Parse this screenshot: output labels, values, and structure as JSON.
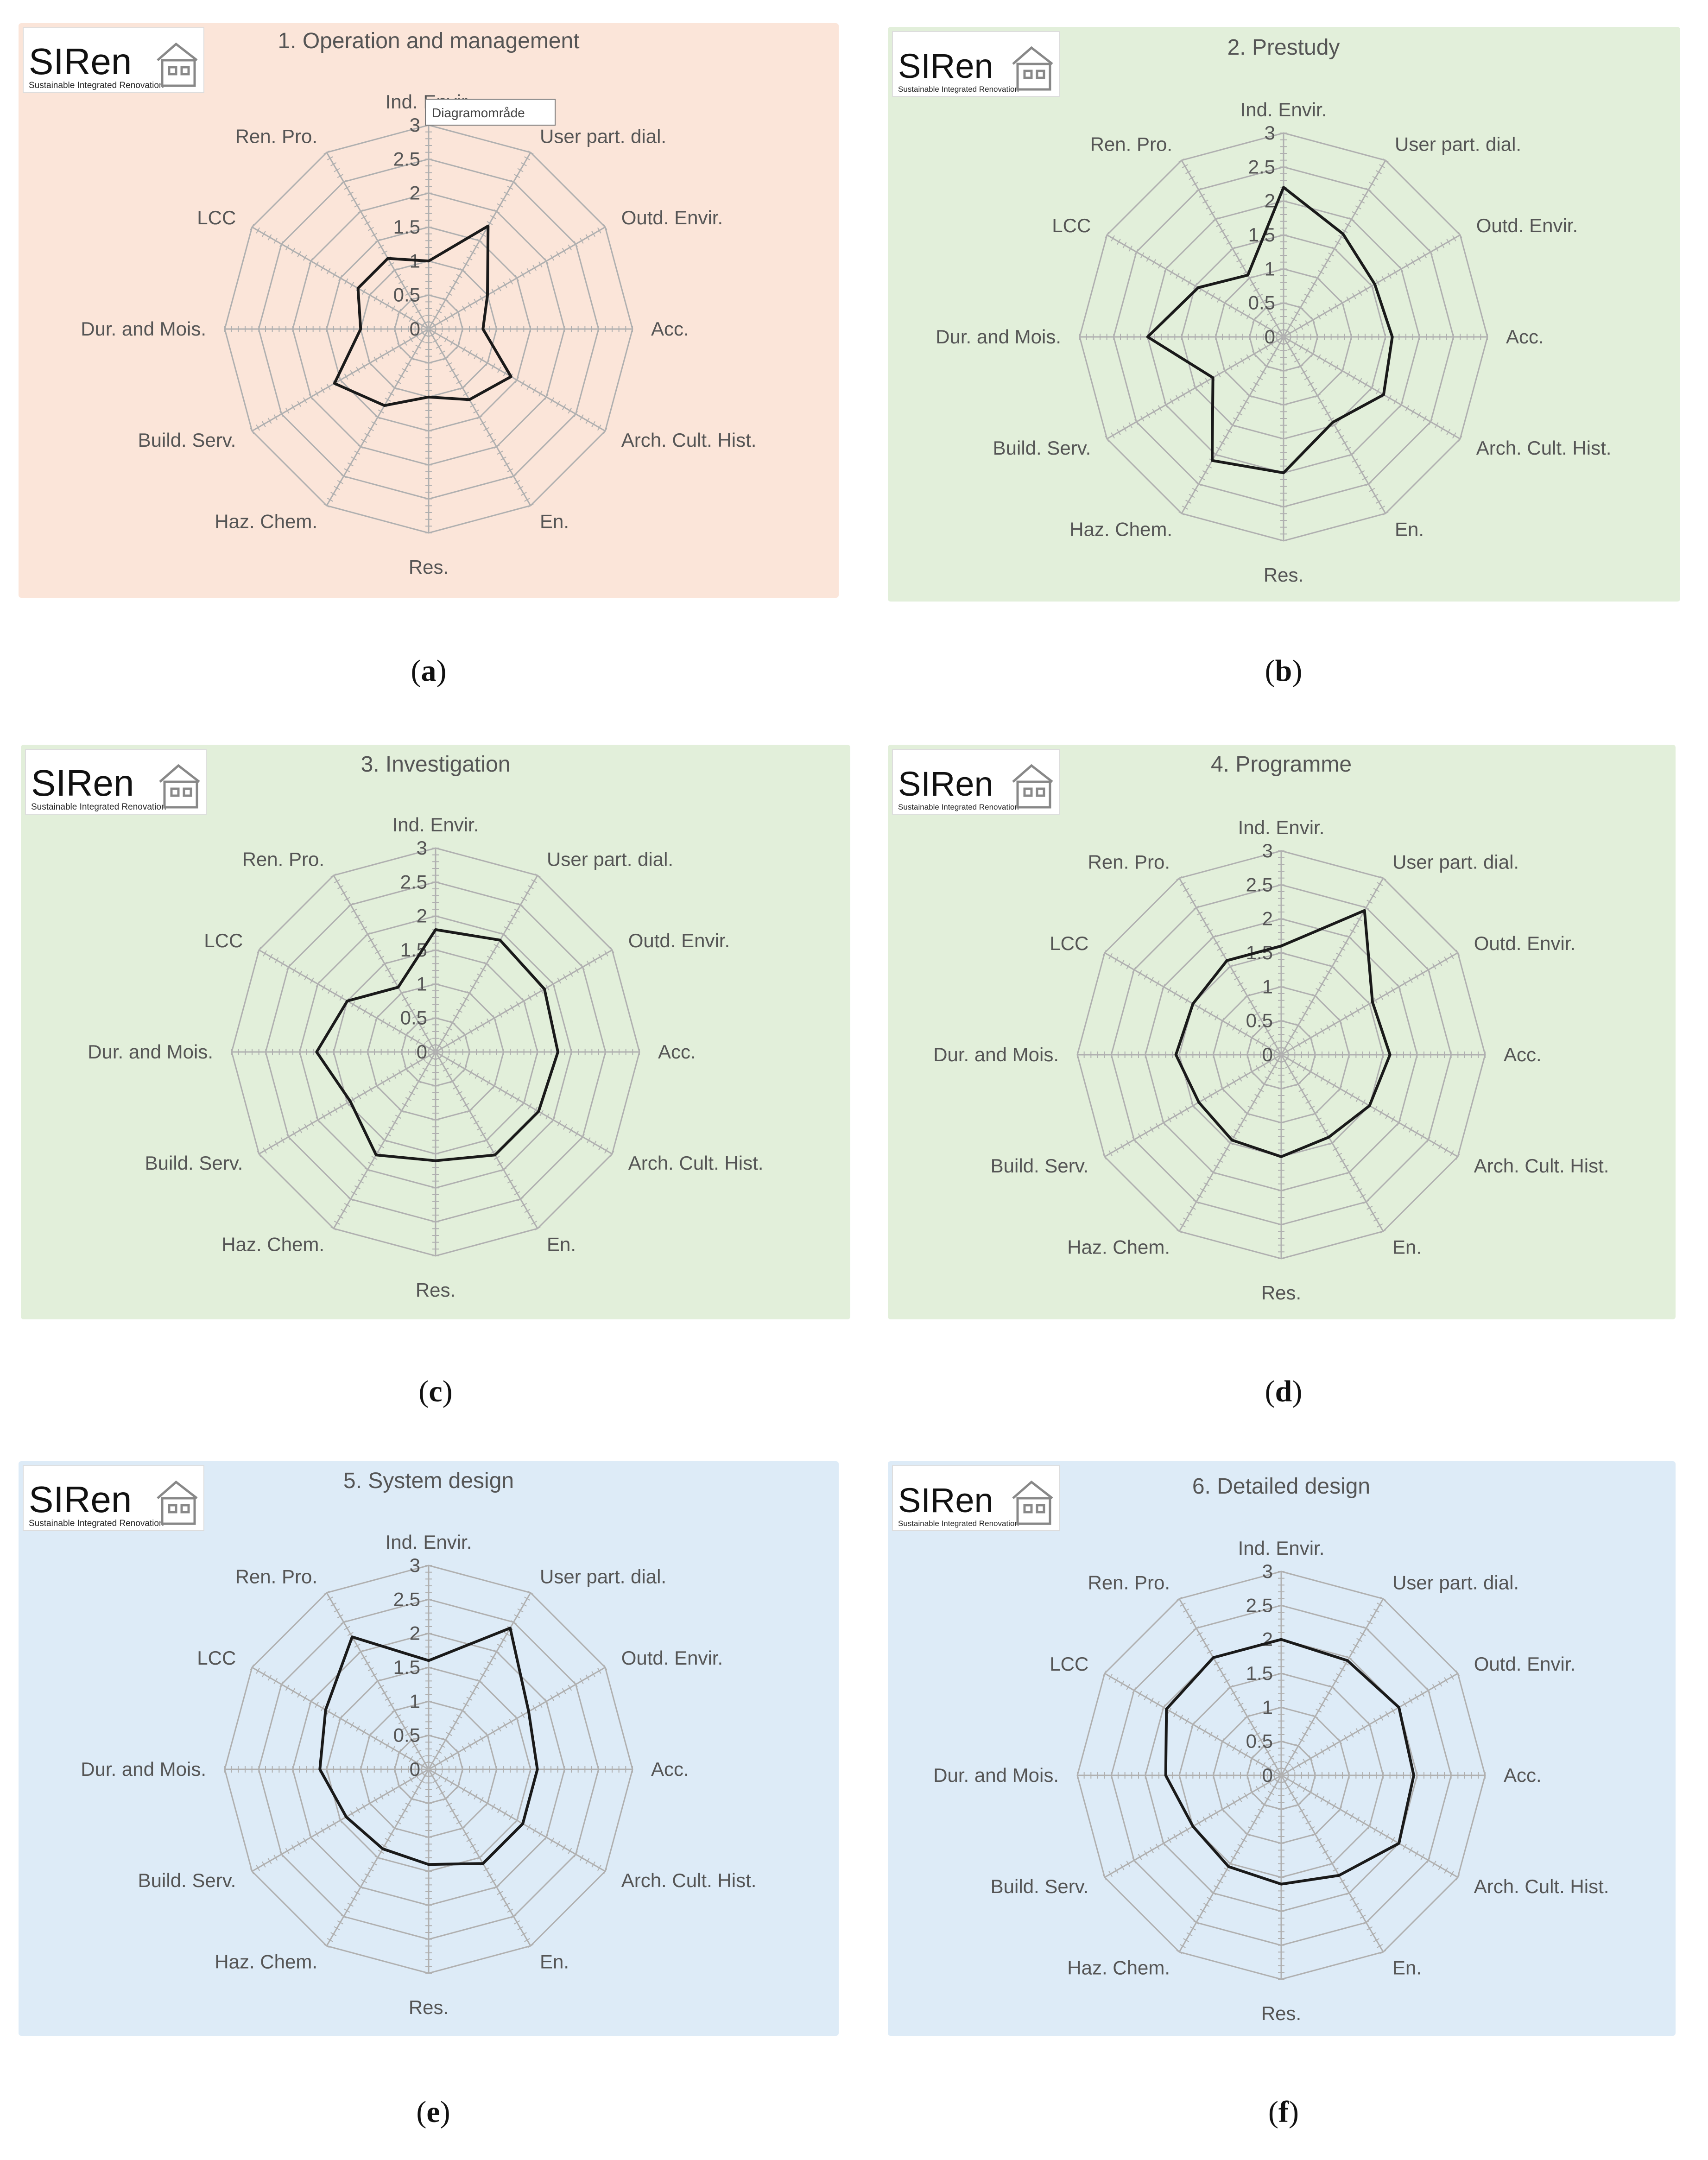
{
  "logo": {
    "name": "SIRen",
    "tagline": "Sustainable Integrated Renovation"
  },
  "axes": [
    "Ind. Envir.",
    "User part. dial.",
    "Outd. Envir.",
    "Acc.",
    "Arch. Cult. Hist.",
    "En.",
    "Res.",
    "Haz. Chem.",
    "Build. Serv.",
    "Dur. and Mois.",
    "LCC",
    "Ren. Pro."
  ],
  "scale_labels": [
    "0",
    "0.5",
    "1",
    "1.5",
    "2",
    "2.5",
    "3"
  ],
  "tooltip": "Diagramområde",
  "colors": {
    "orange": "#fbe5d9",
    "green": "#e2efda",
    "blue": "#ddebf7",
    "grid": "#b0b0b0",
    "series": "#1a1a1a",
    "label": "#555555"
  },
  "chart_data": [
    {
      "type": "radar",
      "title": "1. Operation and management",
      "caption": "a",
      "background": "orange",
      "range": [
        0,
        3
      ],
      "values": [
        1.0,
        1.75,
        1.0,
        0.8,
        1.4,
        1.2,
        1.0,
        1.3,
        1.6,
        1.0,
        1.2,
        1.2
      ]
    },
    {
      "type": "radar",
      "title": "2. Prestudy",
      "caption": "b",
      "background": "green",
      "range": [
        0,
        3
      ],
      "values": [
        2.2,
        1.75,
        1.55,
        1.6,
        1.7,
        1.45,
        2.0,
        2.1,
        1.2,
        2.0,
        1.45,
        1.05
      ]
    },
    {
      "type": "radar",
      "title": "3. Investigation",
      "caption": "c",
      "background": "green",
      "range": [
        0,
        3
      ],
      "values": [
        1.8,
        1.9,
        1.85,
        1.8,
        1.75,
        1.75,
        1.6,
        1.75,
        1.45,
        1.75,
        1.5,
        1.1
      ]
    },
    {
      "type": "radar",
      "title": "4. Programme",
      "caption": "d",
      "background": "green",
      "range": [
        0,
        3
      ],
      "values": [
        1.6,
        2.45,
        1.55,
        1.6,
        1.5,
        1.4,
        1.5,
        1.45,
        1.4,
        1.55,
        1.5,
        1.6
      ]
    },
    {
      "type": "radar",
      "title": "5. System design",
      "caption": "e",
      "background": "blue",
      "range": [
        0,
        3
      ],
      "values": [
        1.6,
        2.4,
        1.7,
        1.6,
        1.6,
        1.6,
        1.4,
        1.35,
        1.4,
        1.6,
        1.75,
        2.25
      ]
    },
    {
      "type": "radar",
      "title": "6. Detailed design",
      "caption": "f",
      "background": "blue",
      "range": [
        0,
        3
      ],
      "values": [
        2.0,
        1.95,
        2.0,
        1.95,
        2.0,
        1.7,
        1.6,
        1.55,
        1.5,
        1.7,
        1.95,
        2.0
      ]
    }
  ]
}
